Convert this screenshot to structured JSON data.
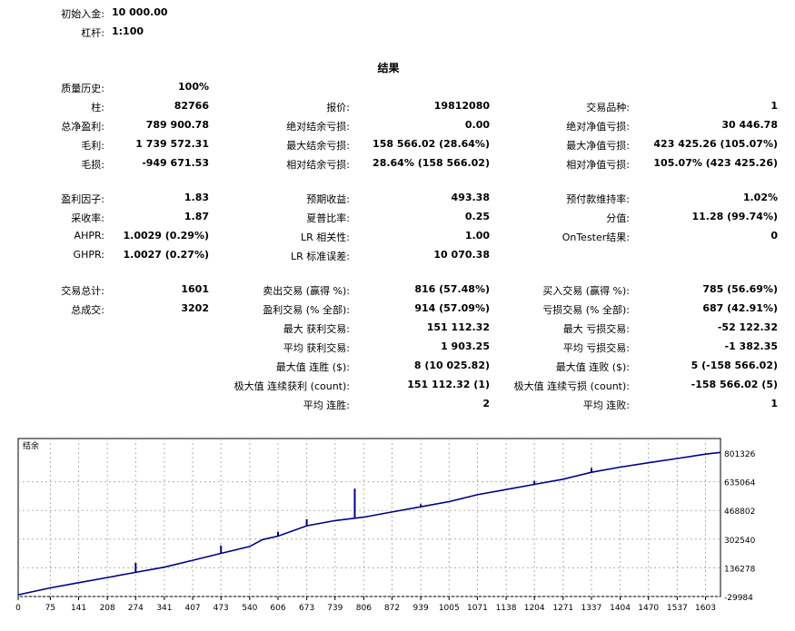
{
  "header": {
    "initial_deposit_label": "初始入金:",
    "initial_deposit_value": "10 000.00",
    "leverage_label": "杠杆:",
    "leverage_value": "1:100"
  },
  "results_title": "结果",
  "col1": [
    {
      "label": "质量历史:",
      "value": "100%"
    },
    {
      "label": "柱:",
      "value": "82766"
    },
    {
      "label": "总净盈利:",
      "value": "789 900.78"
    },
    {
      "label": "毛利:",
      "value": "1 739 572.31"
    },
    {
      "label": "毛损:",
      "value": "-949 671.53"
    },
    {
      "label": "盈利因子:",
      "value": "1.83"
    },
    {
      "label": "采收率:",
      "value": "1.87"
    },
    {
      "label": "AHPR:",
      "value": "1.0029 (0.29%)"
    },
    {
      "label": "GHPR:",
      "value": "1.0027 (0.27%)"
    },
    {
      "label": "交易总计:",
      "value": "1601"
    },
    {
      "label": "总成交:",
      "value": "3202"
    }
  ],
  "col2": [
    {
      "label": "报价:",
      "value": "19812080"
    },
    {
      "label": "绝对结余亏损:",
      "value": "0.00"
    },
    {
      "label": "最大结余亏损:",
      "value": "158 566.02 (28.64%)"
    },
    {
      "label": "相对结余亏损:",
      "value": "28.64% (158 566.02)"
    },
    {
      "label": "预期收益:",
      "value": "493.38"
    },
    {
      "label": "夏普比率:",
      "value": "0.25"
    },
    {
      "label": "LR 相关性:",
      "value": "1.00"
    },
    {
      "label": "LR 标准误差:",
      "value": "10 070.38"
    },
    {
      "label": "卖出交易 (赢得 %):",
      "value": "816 (57.48%)"
    },
    {
      "label": "盈利交易 (% 全部):",
      "value": "914 (57.09%)"
    },
    {
      "label": "最大 获利交易:",
      "value": "151 112.32"
    },
    {
      "label": "平均 获利交易:",
      "value": "1 903.25"
    },
    {
      "label": "最大值 连胜 ($):",
      "value": "8 (10 025.82)"
    },
    {
      "label": "极大值 连续获利 (count):",
      "value": "151 112.32 (1)"
    },
    {
      "label": "平均 连胜:",
      "value": "2"
    }
  ],
  "col3": [
    {
      "label": "交易品种:",
      "value": "1"
    },
    {
      "label": "绝对净值亏损:",
      "value": "30 446.78"
    },
    {
      "label": "最大净值亏损:",
      "value": "423 425.26 (105.07%)"
    },
    {
      "label": "相对净值亏损:",
      "value": "105.07% (423 425.26)"
    },
    {
      "label": "预付款维持率:",
      "value": "1.02%"
    },
    {
      "label": "分值:",
      "value": "11.28 (99.74%)"
    },
    {
      "label": "OnTester结果:",
      "value": "0"
    },
    {
      "label": "买入交易 (赢得 %):",
      "value": "785 (56.69%)"
    },
    {
      "label": "亏损交易 (% 全部):",
      "value": "687 (42.91%)"
    },
    {
      "label": "最大 亏损交易:",
      "value": "-52 122.32"
    },
    {
      "label": "平均 亏损交易:",
      "value": "-1 382.35"
    },
    {
      "label": "最大值 连败 ($):",
      "value": "5 (-158 566.02)"
    },
    {
      "label": "极大值 连续亏损 (count):",
      "value": "-158 566.02 (5)"
    },
    {
      "label": "平均 连败:",
      "value": "1"
    }
  ],
  "chart_data": {
    "type": "line",
    "title": "结余",
    "x_ticks": [
      "0",
      "75",
      "141",
      "208",
      "274",
      "341",
      "407",
      "473",
      "540",
      "606",
      "673",
      "739",
      "806",
      "872",
      "939",
      "1005",
      "1071",
      "1138",
      "1204",
      "1271",
      "1337",
      "1404",
      "1470",
      "1537",
      "1603"
    ],
    "y_ticks": [
      "801326",
      "635064",
      "468802",
      "302540",
      "136278",
      "-29984"
    ],
    "ylim": [
      -29984,
      801326
    ],
    "xlim": [
      0,
      1638
    ],
    "grid": true,
    "line_color": "#00008b",
    "series": [
      {
        "points": [
          [
            0,
            -20000
          ],
          [
            75,
            20000
          ],
          [
            141,
            50000
          ],
          [
            208,
            80000
          ],
          [
            274,
            110000
          ],
          [
            341,
            140000
          ],
          [
            407,
            180000
          ],
          [
            473,
            220000
          ],
          [
            540,
            260000
          ],
          [
            570,
            300000
          ],
          [
            606,
            320000
          ],
          [
            673,
            380000
          ],
          [
            739,
            410000
          ],
          [
            806,
            430000
          ],
          [
            872,
            460000
          ],
          [
            939,
            490000
          ],
          [
            1005,
            520000
          ],
          [
            1071,
            560000
          ],
          [
            1138,
            590000
          ],
          [
            1204,
            620000
          ],
          [
            1271,
            650000
          ],
          [
            1337,
            690000
          ],
          [
            1404,
            720000
          ],
          [
            1470,
            745000
          ],
          [
            1537,
            770000
          ],
          [
            1603,
            795000
          ],
          [
            1638,
            805000
          ]
        ]
      }
    ],
    "spikes": [
      {
        "x": 274,
        "y": 165000
      },
      {
        "x": 473,
        "y": 265000
      },
      {
        "x": 606,
        "y": 345000
      },
      {
        "x": 673,
        "y": 418000
      },
      {
        "x": 785,
        "y": 595000
      },
      {
        "x": 939,
        "y": 505000
      },
      {
        "x": 1204,
        "y": 640000
      },
      {
        "x": 1337,
        "y": 715000
      }
    ]
  }
}
